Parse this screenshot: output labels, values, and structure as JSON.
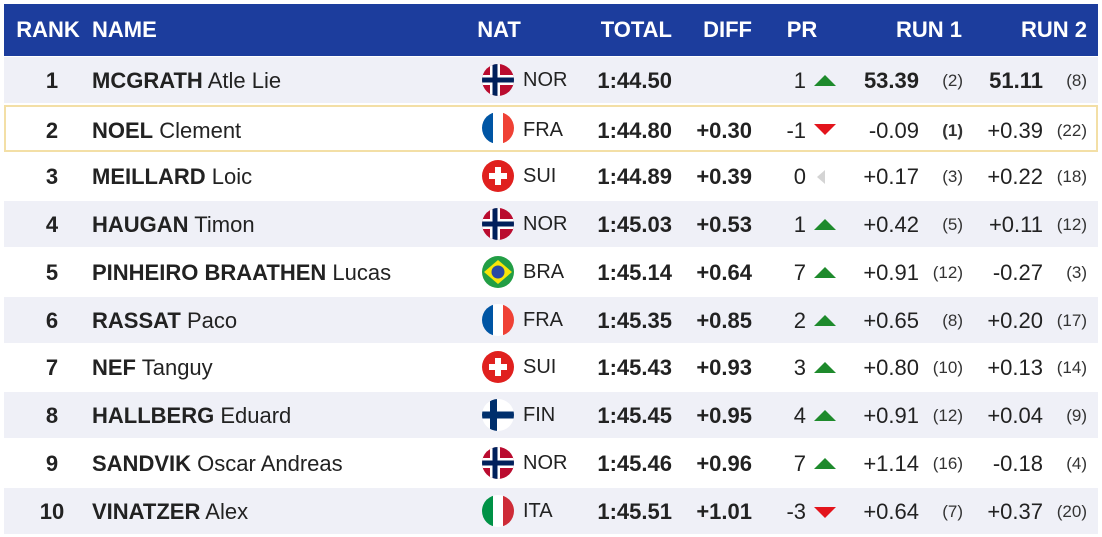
{
  "table": {
    "header": [
      "RANK",
      "NAME",
      "NAT",
      "TOTAL",
      "DIFF",
      "PR",
      "RUN 1",
      "RUN 2"
    ],
    "rows": [
      {
        "rank": 1,
        "surname": "MCGRATH",
        "given": "Atle Lie",
        "nat": "NOR",
        "total": "1:44.50",
        "pr": 1,
        "run1": "53.39",
        "run1_pos": "(2)",
        "run2": "51.11",
        "run2_pos": "(8)"
      },
      {
        "rank": 2,
        "surname": "NOEL",
        "given": "Clement",
        "nat": "FRA",
        "total": "1:44.80",
        "diff": "+0.30",
        "pr": -1,
        "run1": "-0.09",
        "run1_pos": "(1)",
        "run2": "+0.39",
        "run2_pos": "(22)"
      },
      {
        "rank": 3,
        "surname": "MEILLARD",
        "given": "Loic",
        "nat": "SUI",
        "total": "1:44.89",
        "diff": "+0.39",
        "pr": 0,
        "run1": "+0.17",
        "run1_pos": "(3)",
        "run2": "+0.22",
        "run2_pos": "(18)"
      },
      {
        "rank": 4,
        "surname": "HAUGAN",
        "given": "Timon",
        "nat": "NOR",
        "total": "1:45.03",
        "diff": "+0.53",
        "pr": 1,
        "run1": "+0.42",
        "run1_pos": "(5)",
        "run2": "+0.11",
        "run2_pos": "(12)"
      },
      {
        "rank": 5,
        "surname": "PINHEIRO BRAATHEN",
        "given": "Lucas",
        "nat": "BRA",
        "total": "1:45.14",
        "diff": "+0.64",
        "pr": 7,
        "run1": "+0.91",
        "run1_pos": "(12)",
        "run2": "-0.27",
        "run2_pos": "(3)"
      },
      {
        "rank": 6,
        "surname": "RASSAT",
        "given": "Paco",
        "nat": "FRA",
        "total": "1:45.35",
        "diff": "+0.85",
        "pr": 2,
        "run1": "+0.65",
        "run1_pos": "(8)",
        "run2": "+0.20",
        "run2_pos": "(17)"
      },
      {
        "rank": 7,
        "surname": "NEF",
        "given": "Tanguy",
        "nat": "SUI",
        "total": "1:45.43",
        "diff": "+0.93",
        "pr": 3,
        "run1": "+0.80",
        "run1_pos": "(10)",
        "run2": "+0.13",
        "run2_pos": "(14)"
      },
      {
        "rank": 8,
        "surname": "HALLBERG",
        "given": "Eduard",
        "nat": "FIN",
        "total": "1:45.45",
        "diff": "+0.95",
        "pr": 4,
        "run1": "+0.91",
        "run1_pos": "(12)",
        "run2": "+0.04",
        "run2_pos": "(9)"
      },
      {
        "rank": 9,
        "surname": "SANDVIK",
        "given": "Oscar Andreas",
        "nat": "NOR",
        "total": "1:45.46",
        "diff": "+0.96",
        "pr": 7,
        "run1": "+1.14",
        "run1_pos": "(16)",
        "run2": "-0.18",
        "run2_pos": "(4)"
      },
      {
        "rank": 10,
        "surname": "VINATZER",
        "given": "Alex",
        "nat": "ITA",
        "total": "1:45.51",
        "diff": "+1.01",
        "pr": -3,
        "run1": "+0.64",
        "run1_pos": "(7)",
        "run2": "+0.37",
        "run2_pos": "(20)"
      }
    ]
  }
}
